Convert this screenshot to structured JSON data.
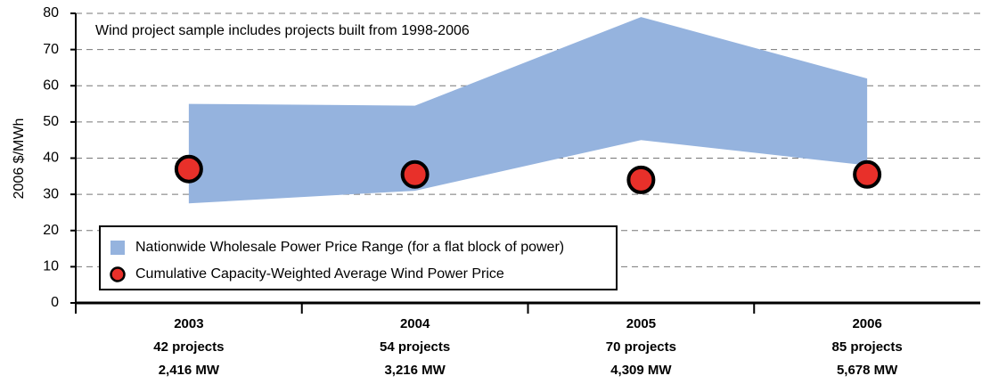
{
  "chart_data": {
    "type": "range-scatter",
    "annotation": "Wind project sample includes projects built from 1998-2006",
    "y_label": "2006 $/MWh",
    "categories": [
      [
        "2003",
        "42 projects",
        "2,416 MW"
      ],
      [
        "2004",
        "54 projects",
        "3,216 MW"
      ],
      [
        "2005",
        "70 projects",
        "4,309 MW"
      ],
      [
        "2006",
        "85 projects",
        "5,678 MW"
      ]
    ],
    "series": [
      {
        "name": "Nationwide Wholesale Power Price Range (for a flat block of power)",
        "type": "range",
        "color": "#95b3de",
        "low": [
          27.5,
          31,
          45,
          38
        ],
        "high": [
          55,
          54.5,
          79,
          62
        ]
      },
      {
        "name": "Cumulative Capacity-Weighted Average Wind Power Price",
        "type": "scatter",
        "color": "#e8302a",
        "values": [
          37,
          35.5,
          34,
          35.5
        ]
      }
    ],
    "ylim": [
      0,
      80
    ],
    "yticks": [
      0,
      10,
      20,
      30,
      40,
      50,
      60,
      70,
      80
    ],
    "grid": true,
    "legend": "lower left"
  }
}
